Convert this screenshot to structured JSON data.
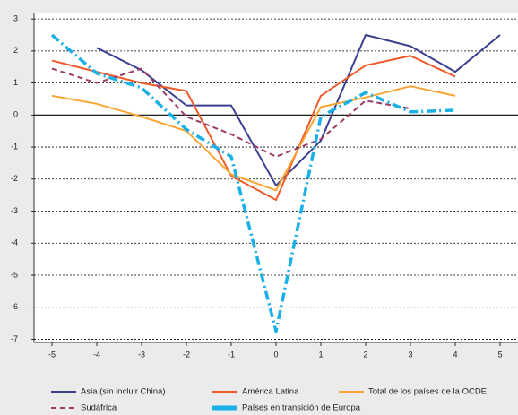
{
  "chart_data": {
    "type": "line",
    "x": [
      -5,
      -4,
      -3,
      -2,
      -1,
      0,
      1,
      2,
      3,
      4,
      5
    ],
    "series": [
      {
        "name": "Asia (sin incluir China)",
        "color": "#3b3f8f",
        "line_style": "solid",
        "values": [
          null,
          2.1,
          1.4,
          0.3,
          0.3,
          -2.2,
          -0.8,
          2.5,
          2.15,
          1.35,
          2.5
        ]
      },
      {
        "name": "América Latina",
        "color": "#f05a28",
        "line_style": "solid",
        "values": [
          1.7,
          1.35,
          1.0,
          0.75,
          -1.9,
          -2.65,
          0.6,
          1.55,
          1.85,
          1.2,
          null
        ]
      },
      {
        "name": "Total de los países de la OCDE",
        "color": "#f8a534",
        "line_style": "solid",
        "values": [
          0.6,
          0.35,
          -0.05,
          -0.5,
          -1.85,
          -2.35,
          0.25,
          0.55,
          0.9,
          0.6,
          null
        ]
      },
      {
        "name": "Sudáfrica",
        "color": "#9a3a68",
        "line_style": "dashed",
        "values": [
          1.45,
          1.0,
          1.45,
          -0.05,
          -0.6,
          -1.3,
          -0.75,
          0.45,
          0.2,
          null,
          null
        ]
      },
      {
        "name": "Países en transición de Europa",
        "color": "#19b0e8",
        "line_style": "dashdot",
        "values": [
          2.5,
          1.3,
          0.85,
          -0.45,
          -1.3,
          -6.75,
          -0.05,
          0.7,
          0.1,
          0.15,
          null
        ]
      }
    ],
    "xlim": [
      -5.4,
      5.4
    ],
    "xticks": [
      -5,
      -4,
      -3,
      -2,
      -1,
      0,
      1,
      2,
      3,
      4,
      5
    ],
    "ylim": [
      -7.1,
      3.2
    ],
    "yticks": [
      3,
      2,
      1,
      0,
      -1,
      -2,
      -3,
      -4,
      -5,
      -6,
      -7
    ],
    "grid": true,
    "legend": "bottom"
  }
}
